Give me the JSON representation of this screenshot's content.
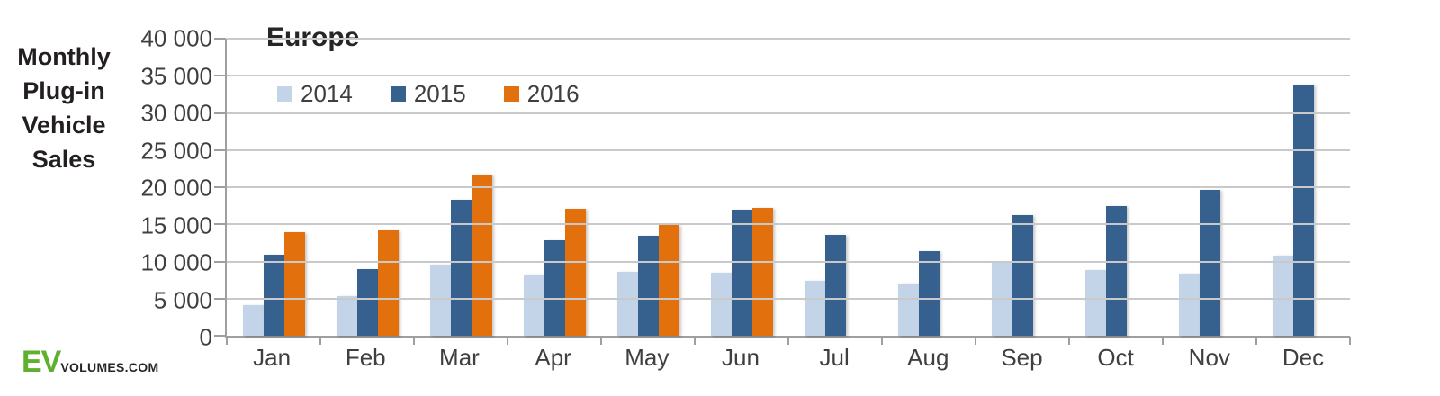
{
  "page": {
    "left_title": "Monthly\nPlug-in\nVehicle\nSales"
  },
  "logo": {
    "ev_text": "EV",
    "volumes_text": "VOLUMES.COM",
    "ev_color": "#5fb02f",
    "volumes_color": "#262626"
  },
  "chart_data": {
    "type": "bar",
    "title": "Europe",
    "categories": [
      "Jan",
      "Feb",
      "Mar",
      "Apr",
      "May",
      "Jun",
      "Jul",
      "Aug",
      "Sep",
      "Oct",
      "Nov",
      "Dec"
    ],
    "series": [
      {
        "name": "2014",
        "color": "#c3d4e9",
        "values": [
          4100,
          5300,
          9600,
          8300,
          8600,
          8500,
          7400,
          7000,
          10000,
          8800,
          8400,
          10800
        ]
      },
      {
        "name": "2015",
        "color": "#36618e",
        "values": [
          10900,
          9000,
          18300,
          12900,
          13500,
          17000,
          13600,
          11400,
          16300,
          17500,
          19600,
          33800
        ]
      },
      {
        "name": "2016",
        "color": "#e2700c",
        "values": [
          13900,
          14200,
          21700,
          17100,
          14900,
          17200,
          null,
          null,
          null,
          null,
          null,
          null
        ]
      }
    ],
    "ylabel_block": "Monthly Plug-in Vehicle Sales",
    "ylim": [
      0,
      40000
    ],
    "ytick_step": 5000,
    "ytick_labels": [
      "40 000",
      "35 000",
      "30 000",
      "25 000",
      "20 000",
      "15 000",
      "10 000",
      "5 000",
      "0"
    ],
    "grid": true,
    "legend_position": "top-left-inside"
  }
}
